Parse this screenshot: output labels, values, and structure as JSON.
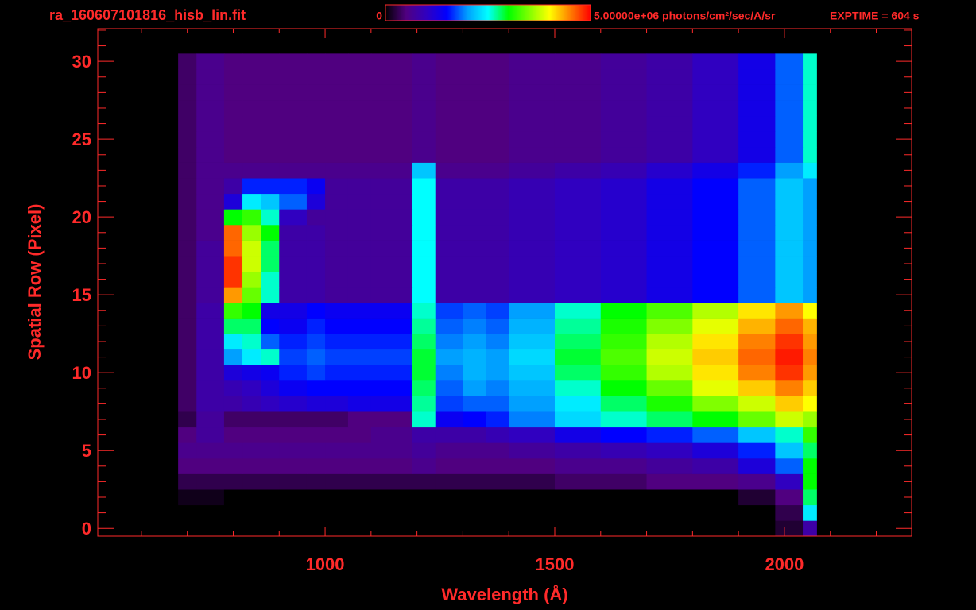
{
  "chart_data": {
    "type": "heatmap",
    "title": "ra_160607101816_hisb_lin.fit",
    "annotation": "EXPTIME = 604 s",
    "xlabel": "Wavelength (Å)",
    "ylabel": "Spatial Row (Pixel)",
    "xlim": [
      505,
      2277
    ],
    "ylim": [
      -0.5,
      32.1
    ],
    "xticks": [
      1000,
      1500,
      2000
    ],
    "xminorticks": [
      600,
      700,
      800,
      900,
      1100,
      1200,
      1300,
      1400,
      1600,
      1700,
      1800,
      1900,
      2100,
      2200
    ],
    "yticks": [
      0,
      5,
      10,
      15,
      20,
      25,
      30
    ],
    "yminorticks": [
      1,
      2,
      3,
      4,
      6,
      7,
      8,
      9,
      11,
      12,
      13,
      14,
      16,
      17,
      18,
      19,
      21,
      22,
      23,
      24,
      26,
      27,
      28,
      29,
      31,
      32
    ],
    "axis_color": "#ff2a2a",
    "colormap": [
      "#000000",
      "#500080",
      "#3000c0",
      "#0000ff",
      "#00a0ff",
      "#00ffff",
      "#00ff00",
      "#80ff00",
      "#ffff00",
      "#ff8000",
      "#ff0000"
    ],
    "clim": [
      0,
      5000000.0
    ],
    "colorbar_ticks": [
      0,
      {
        "value": 5000000.0,
        "label": "5.00000e+06 photons/cm²/sec/A/sr"
      }
    ],
    "x_edges": [
      680,
      720,
      780,
      820,
      860,
      900,
      960,
      1000,
      1050,
      1100,
      1190,
      1240,
      1300,
      1350,
      1400,
      1500,
      1600,
      1700,
      1800,
      1900,
      1980,
      2040,
      2070
    ],
    "y": [
      0,
      1,
      2,
      3,
      4,
      5,
      6,
      7,
      8,
      9,
      10,
      11,
      12,
      13,
      14,
      15,
      16,
      17,
      18,
      19,
      20,
      21,
      22,
      23,
      24,
      25,
      26,
      27,
      28,
      29,
      30
    ],
    "z": [
      [
        0,
        0,
        0,
        0,
        0,
        0,
        0,
        0,
        0,
        0,
        0,
        0,
        0,
        0,
        0,
        0,
        0,
        0,
        0,
        0,
        200000.0,
        800000.0
      ],
      [
        0,
        0,
        0,
        0,
        0,
        0,
        0,
        0,
        0,
        0,
        0,
        0,
        0,
        0,
        0,
        0,
        0,
        0,
        0,
        0,
        300000.0,
        2400000.0
      ],
      [
        100000.0,
        100000.0,
        0,
        0,
        0,
        0,
        0,
        0,
        0,
        0,
        0,
        0,
        0,
        0,
        0,
        0,
        0,
        0,
        0,
        200000.0,
        500000.0,
        2800000.0
      ],
      [
        300000.0,
        300000.0,
        300000.0,
        300000.0,
        300000.0,
        300000.0,
        300000.0,
        300000.0,
        300000.0,
        300000.0,
        300000.0,
        300000.0,
        300000.0,
        300000.0,
        300000.0,
        400000.0,
        400000.0,
        500000.0,
        500000.0,
        600000.0,
        1000000.0,
        3000000.0
      ],
      [
        500000.0,
        500000.0,
        500000.0,
        500000.0,
        500000.0,
        500000.0,
        500000.0,
        500000.0,
        500000.0,
        500000.0,
        600000.0,
        500000.0,
        500000.0,
        500000.0,
        500000.0,
        600000.0,
        600000.0,
        700000.0,
        800000.0,
        1200000.0,
        1800000.0,
        3000000.0
      ],
      [
        600000.0,
        600000.0,
        600000.0,
        600000.0,
        600000.0,
        600000.0,
        600000.0,
        600000.0,
        600000.0,
        600000.0,
        700000.0,
        600000.0,
        600000.0,
        600000.0,
        700000.0,
        800000.0,
        900000.0,
        1000000.0,
        1200000.0,
        1600000.0,
        2200000.0,
        2800000.0
      ],
      [
        500000.0,
        700000.0,
        500000.0,
        500000.0,
        500000.0,
        500000.0,
        500000.0,
        500000.0,
        500000.0,
        600000.0,
        800000.0,
        800000.0,
        800000.0,
        900000.0,
        1000000.0,
        1300000.0,
        1500000.0,
        1600000.0,
        1800000.0,
        2200000.0,
        2600000.0,
        3200000.0
      ],
      [
        300000.0,
        700000.0,
        400000.0,
        400000.0,
        400000.0,
        400000.0,
        400000.0,
        400000.0,
        500000.0,
        500000.0,
        2600000.0,
        1400000.0,
        1500000.0,
        1600000.0,
        1900000.0,
        2300000.0,
        2600000.0,
        2800000.0,
        3000000.0,
        3400000.0,
        3800000.0,
        3600000.0
      ],
      [
        400000.0,
        800000.0,
        800000.0,
        900000.0,
        1000000.0,
        1100000.0,
        1200000.0,
        1200000.0,
        1300000.0,
        1300000.0,
        2700000.0,
        1700000.0,
        1800000.0,
        1800000.0,
        2000000.0,
        2400000.0,
        2800000.0,
        3100000.0,
        3500000.0,
        3800000.0,
        4200000.0,
        4000000.0
      ],
      [
        400000.0,
        800000.0,
        900000.0,
        1000000.0,
        1200000.0,
        1400000.0,
        1500000.0,
        1500000.0,
        1500000.0,
        1500000.0,
        2800000.0,
        1800000.0,
        2000000.0,
        1900000.0,
        2100000.0,
        2600000.0,
        3000000.0,
        3400000.0,
        3900000.0,
        4200000.0,
        4500000.0,
        4200000.0
      ],
      [
        400000.0,
        800000.0,
        1200000.0,
        1300000.0,
        1400000.0,
        1600000.0,
        1700000.0,
        1600000.0,
        1600000.0,
        1600000.0,
        2900000.0,
        1900000.0,
        2100000.0,
        2000000.0,
        2200000.0,
        2800000.0,
        3200000.0,
        3700000.0,
        4100000.0,
        4500000.0,
        4800000.0,
        4400000.0
      ],
      [
        400000.0,
        800000.0,
        2000000.0,
        2400000.0,
        2600000.0,
        1700000.0,
        1800000.0,
        1700000.0,
        1700000.0,
        1700000.0,
        2900000.0,
        2000000.0,
        2100000.0,
        2000000.0,
        2300000.0,
        2900000.0,
        3300000.0,
        3800000.0,
        4200000.0,
        4600000.0,
        4900000.0,
        4500000.0
      ],
      [
        400000.0,
        800000.0,
        2400000.0,
        2600000.0,
        1800000.0,
        1600000.0,
        1700000.0,
        1600000.0,
        1600000.0,
        1600000.0,
        2800000.0,
        1900000.0,
        2000000.0,
        1900000.0,
        2200000.0,
        2800000.0,
        3200000.0,
        3700000.0,
        4100000.0,
        4500000.0,
        4800000.0,
        4400000.0
      ],
      [
        400000.0,
        800000.0,
        2800000.0,
        2800000.0,
        1500000.0,
        1400000.0,
        1600000.0,
        1500000.0,
        1500000.0,
        1500000.0,
        2700000.0,
        1800000.0,
        1900000.0,
        1800000.0,
        2100000.0,
        2700000.0,
        3100000.0,
        3500000.0,
        3900000.0,
        4300000.0,
        4600000.0,
        4300000.0
      ],
      [
        400000.0,
        800000.0,
        3200000.0,
        3000000.0,
        1300000.0,
        1300000.0,
        1500000.0,
        1400000.0,
        1400000.0,
        1400000.0,
        2600000.0,
        1700000.0,
        1800000.0,
        1700000.0,
        2000000.0,
        2600000.0,
        3000000.0,
        3300000.0,
        3700000.0,
        4100000.0,
        4400000.0,
        4000000.0
      ],
      [
        400000.0,
        700000.0,
        4400000.0,
        3400000.0,
        2600000.0,
        800000.0,
        800000.0,
        700000.0,
        700000.0,
        700000.0,
        2500000.0,
        800000.0,
        800000.0,
        800000.0,
        900000.0,
        1000000.0,
        1100000.0,
        1300000.0,
        1500000.0,
        1800000.0,
        2200000.0,
        2000000.0
      ],
      [
        400000.0,
        700000.0,
        4800000.0,
        3600000.0,
        2600000.0,
        800000.0,
        800000.0,
        700000.0,
        700000.0,
        700000.0,
        2500000.0,
        800000.0,
        800000.0,
        800000.0,
        900000.0,
        1000000.0,
        1100000.0,
        1300000.0,
        1500000.0,
        1800000.0,
        2200000.0,
        2000000.0
      ],
      [
        400000.0,
        700000.0,
        4800000.0,
        3800000.0,
        2800000.0,
        800000.0,
        800000.0,
        700000.0,
        700000.0,
        700000.0,
        2500000.0,
        800000.0,
        800000.0,
        800000.0,
        900000.0,
        1000000.0,
        1100000.0,
        1300000.0,
        1500000.0,
        1800000.0,
        2200000.0,
        2000000.0
      ],
      [
        400000.0,
        700000.0,
        4600000.0,
        3800000.0,
        2800000.0,
        800000.0,
        800000.0,
        700000.0,
        700000.0,
        700000.0,
        2500000.0,
        800000.0,
        800000.0,
        800000.0,
        900000.0,
        1000000.0,
        1100000.0,
        1300000.0,
        1500000.0,
        1800000.0,
        2200000.0,
        2000000.0
      ],
      [
        400000.0,
        600000.0,
        4600000.0,
        3600000.0,
        3000000.0,
        800000.0,
        800000.0,
        700000.0,
        700000.0,
        700000.0,
        2500000.0,
        800000.0,
        800000.0,
        800000.0,
        900000.0,
        1000000.0,
        1100000.0,
        1300000.0,
        1500000.0,
        1800000.0,
        2200000.0,
        2000000.0
      ],
      [
        400000.0,
        600000.0,
        3000000.0,
        3200000.0,
        2600000.0,
        1000000.0,
        700000.0,
        700000.0,
        700000.0,
        700000.0,
        2500000.0,
        800000.0,
        800000.0,
        800000.0,
        900000.0,
        1000000.0,
        1100000.0,
        1300000.0,
        1500000.0,
        1800000.0,
        2200000.0,
        2000000.0
      ],
      [
        400000.0,
        600000.0,
        1200000.0,
        2400000.0,
        2200000.0,
        1800000.0,
        1200000.0,
        700000.0,
        700000.0,
        700000.0,
        2500000.0,
        800000.0,
        800000.0,
        800000.0,
        900000.0,
        1000000.0,
        1100000.0,
        1300000.0,
        1500000.0,
        1800000.0,
        2200000.0,
        2000000.0
      ],
      [
        400000.0,
        600000.0,
        800000.0,
        1600000.0,
        1600000.0,
        1600000.0,
        1400000.0,
        700000.0,
        700000.0,
        700000.0,
        2500000.0,
        800000.0,
        800000.0,
        800000.0,
        900000.0,
        1000000.0,
        1100000.0,
        1300000.0,
        1500000.0,
        1800000.0,
        2200000.0,
        2000000.0
      ],
      [
        400000.0,
        600000.0,
        600000.0,
        600000.0,
        600000.0,
        600000.0,
        600000.0,
        600000.0,
        600000.0,
        600000.0,
        2200000.0,
        600000.0,
        600000.0,
        600000.0,
        700000.0,
        800000.0,
        900000.0,
        1100000.0,
        1300000.0,
        1600000.0,
        2000000.0,
        2400000.0
      ],
      [
        400000.0,
        600000.0,
        500000.0,
        500000.0,
        500000.0,
        500000.0,
        500000.0,
        500000.0,
        500000.0,
        500000.0,
        600000.0,
        500000.0,
        500000.0,
        500000.0,
        600000.0,
        600000.0,
        700000.0,
        800000.0,
        1000000.0,
        1300000.0,
        1800000.0,
        2600000.0
      ],
      [
        400000.0,
        600000.0,
        500000.0,
        500000.0,
        500000.0,
        500000.0,
        500000.0,
        500000.0,
        500000.0,
        500000.0,
        600000.0,
        500000.0,
        500000.0,
        500000.0,
        600000.0,
        600000.0,
        700000.0,
        800000.0,
        1000000.0,
        1300000.0,
        1800000.0,
        2600000.0
      ],
      [
        400000.0,
        600000.0,
        500000.0,
        500000.0,
        500000.0,
        500000.0,
        500000.0,
        500000.0,
        500000.0,
        500000.0,
        600000.0,
        500000.0,
        500000.0,
        500000.0,
        600000.0,
        600000.0,
        700000.0,
        800000.0,
        1000000.0,
        1300000.0,
        1800000.0,
        2600000.0
      ],
      [
        400000.0,
        600000.0,
        500000.0,
        500000.0,
        500000.0,
        500000.0,
        500000.0,
        500000.0,
        500000.0,
        500000.0,
        600000.0,
        500000.0,
        500000.0,
        500000.0,
        600000.0,
        600000.0,
        700000.0,
        800000.0,
        1000000.0,
        1300000.0,
        1800000.0,
        2600000.0
      ],
      [
        400000.0,
        600000.0,
        500000.0,
        500000.0,
        500000.0,
        500000.0,
        500000.0,
        500000.0,
        500000.0,
        500000.0,
        600000.0,
        500000.0,
        500000.0,
        500000.0,
        600000.0,
        600000.0,
        700000.0,
        800000.0,
        1000000.0,
        1300000.0,
        1800000.0,
        2600000.0
      ],
      [
        400000.0,
        600000.0,
        500000.0,
        500000.0,
        500000.0,
        500000.0,
        500000.0,
        500000.0,
        500000.0,
        500000.0,
        600000.0,
        500000.0,
        500000.0,
        500000.0,
        600000.0,
        600000.0,
        700000.0,
        800000.0,
        1000000.0,
        1300000.0,
        1800000.0,
        2600000.0
      ],
      [
        400000.0,
        600000.0,
        500000.0,
        500000.0,
        500000.0,
        500000.0,
        500000.0,
        500000.0,
        500000.0,
        500000.0,
        600000.0,
        500000.0,
        500000.0,
        500000.0,
        600000.0,
        600000.0,
        700000.0,
        800000.0,
        1000000.0,
        1300000.0,
        1800000.0,
        2600000.0
      ]
    ]
  }
}
